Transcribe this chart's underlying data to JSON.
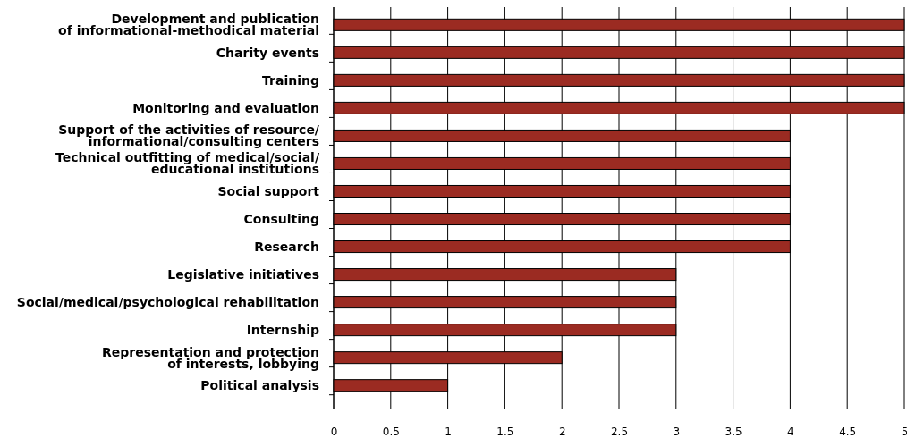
{
  "chart_data": {
    "type": "bar",
    "orientation": "horizontal",
    "categories": [
      "Development and publication\nof informational-methodical material",
      "Charity events",
      "Training",
      "Monitoring and evaluation",
      "Support of the activities of resource/\ninformational/consulting centers",
      "Technical outfitting of medical/social/\neducational institutions",
      "Social support",
      "Consulting",
      "Research",
      "Legislative initiatives",
      "Social/medical/psychological rehabilitation",
      "Internship",
      "Representation and protection\nof interests, lobbying",
      "Political analysis"
    ],
    "values": [
      5,
      5,
      5,
      5,
      4,
      4,
      4,
      4,
      4,
      3,
      3,
      3,
      2,
      1
    ],
    "color": "#9b2b22",
    "xlim": [
      0,
      5
    ],
    "xticks": [
      0,
      0.5,
      1,
      1.5,
      2,
      2.5,
      3,
      3.5,
      4,
      4.5,
      5
    ],
    "grid": "x"
  }
}
